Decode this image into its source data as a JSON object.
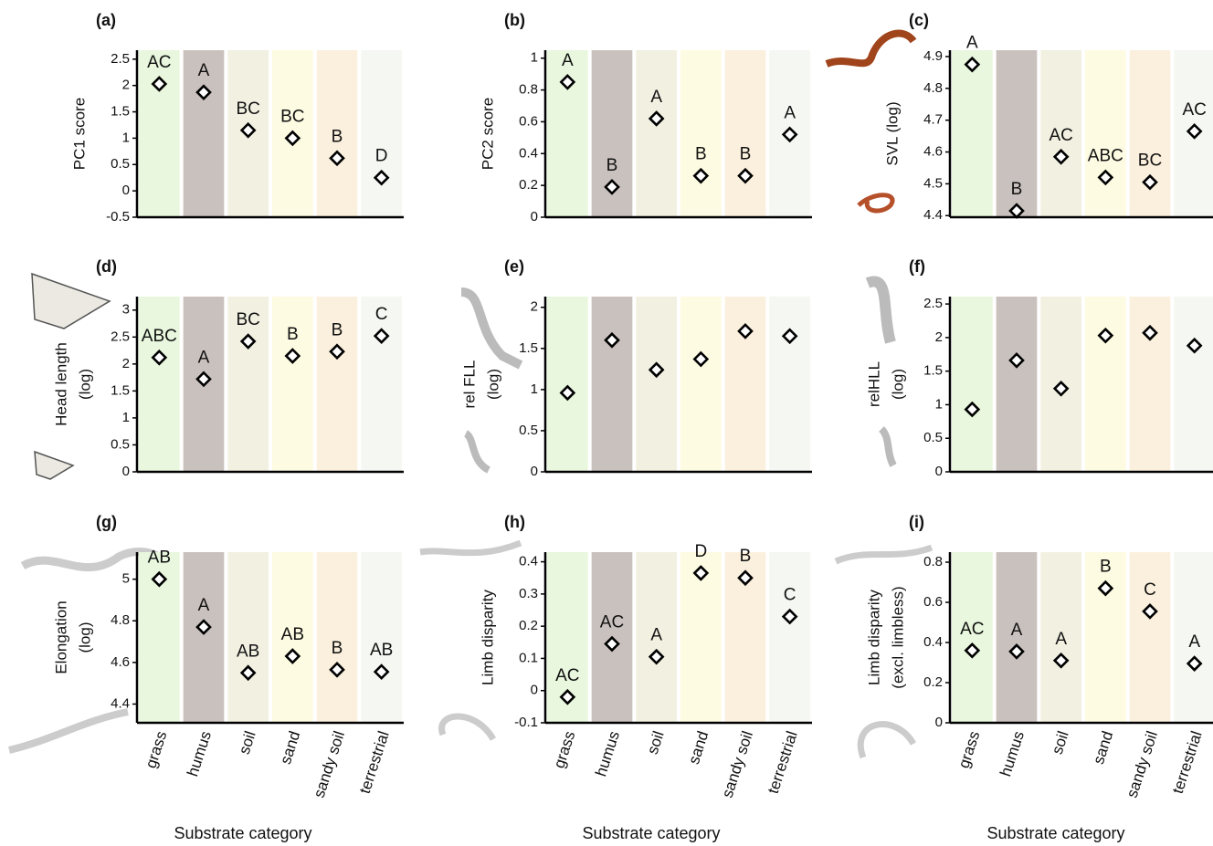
{
  "chart_data": [
    {
      "type": "point",
      "title": "(a)",
      "ylabel": "PC1 score",
      "categories": [
        null,
        null,
        null,
        null,
        null,
        null
      ],
      "values": [
        2.03,
        1.87,
        1.15,
        1.0,
        0.62,
        0.25
      ],
      "point_labels": [
        "AC",
        "A",
        "BC",
        "BC",
        "B",
        "D"
      ],
      "band_colors": [
        "#e8f7dd",
        "#c9c1bd",
        "#f2f0e1",
        "#fdfbe1",
        "#fbf0dd",
        "#f5f7f2"
      ],
      "color": "#000000",
      "ylim": [
        -0.5,
        2.67
      ],
      "yticks": [
        -0.5,
        0,
        0.5,
        1,
        1.5,
        2,
        2.5
      ]
    },
    {
      "type": "point",
      "title": "(b)",
      "ylabel": "PC2 score",
      "categories": [
        null,
        null,
        null,
        null,
        null,
        null
      ],
      "values": [
        0.85,
        0.19,
        0.62,
        0.26,
        0.26,
        0.52
      ],
      "point_labels": [
        "A",
        "B",
        "A",
        "B",
        "B",
        "A"
      ],
      "band_colors": [
        "#e8f7dd",
        "#c9c1bd",
        "#f2f0e1",
        "#fdfbe1",
        "#fbf0dd",
        "#f5f7f2"
      ],
      "color": "#000000",
      "ylim": [
        0,
        1.05
      ],
      "yticks": [
        0,
        0.2,
        0.4,
        0.6,
        0.8,
        1
      ]
    },
    {
      "type": "point",
      "title": "(c)",
      "ylabel": "SVL (log)",
      "categories": [
        null,
        null,
        null,
        null,
        null,
        null
      ],
      "values": [
        4.875,
        4.415,
        4.585,
        4.52,
        4.505,
        4.665
      ],
      "point_labels": [
        "A",
        "B",
        "AC",
        "ABC",
        "BC",
        "AC"
      ],
      "band_colors": [
        "#e8f7dd",
        "#c9c1bd",
        "#f2f0e1",
        "#fdfbe1",
        "#fbf0dd",
        "#f5f7f2"
      ],
      "color": "#000000",
      "ylim": [
        4.395,
        4.92
      ],
      "yticks": [
        4.4,
        4.5,
        4.6,
        4.7,
        4.8,
        4.9
      ]
    },
    {
      "type": "point",
      "title": "(d)",
      "ylabel": [
        "Head length",
        "(log)"
      ],
      "categories": [
        null,
        null,
        null,
        null,
        null,
        null
      ],
      "values": [
        2.12,
        1.72,
        2.42,
        2.15,
        2.23,
        2.52
      ],
      "point_labels": [
        "ABC",
        "A",
        "BC",
        "B",
        "B",
        "C"
      ],
      "band_colors": [
        "#e8f7dd",
        "#c9c1bd",
        "#f2f0e1",
        "#fdfbe1",
        "#fbf0dd",
        "#f5f7f2"
      ],
      "color": "#000000",
      "ylim": [
        0,
        3.25
      ],
      "yticks": [
        0,
        0.5,
        1,
        1.5,
        2,
        2.5,
        3
      ]
    },
    {
      "type": "point",
      "title": "(e)",
      "ylabel": [
        "rel FLL",
        "(log)"
      ],
      "categories": [
        null,
        null,
        null,
        null,
        null,
        null
      ],
      "values": [
        0.96,
        1.6,
        1.24,
        1.37,
        1.71,
        1.65
      ],
      "band_colors": [
        "#e8f7dd",
        "#c9c1bd",
        "#f2f0e1",
        "#fdfbe1",
        "#fbf0dd",
        "#f5f7f2"
      ],
      "color": "#000000",
      "ylim": [
        0,
        2.13
      ],
      "yticks": [
        0,
        0.5,
        1,
        1.5,
        2
      ]
    },
    {
      "type": "point",
      "title": "(f)",
      "ylabel": [
        "relHLL",
        "(log)"
      ],
      "categories": [
        null,
        null,
        null,
        null,
        null,
        null
      ],
      "values": [
        0.93,
        1.66,
        1.24,
        2.03,
        2.07,
        1.88
      ],
      "band_colors": [
        "#e8f7dd",
        "#c9c1bd",
        "#f2f0e1",
        "#fdfbe1",
        "#fbf0dd",
        "#f5f7f2"
      ],
      "color": "#000000",
      "ylim": [
        0,
        2.61
      ],
      "yticks": [
        0,
        0.5,
        1,
        1.5,
        2,
        2.5
      ]
    },
    {
      "type": "point",
      "title": "(g)",
      "ylabel": [
        "Elongation",
        "(log)"
      ],
      "xlabel": "Substrate category",
      "categories": [
        "grass",
        "humus",
        "soil",
        "sand",
        "sandy soil",
        "terrestrial"
      ],
      "values": [
        5.0,
        4.77,
        4.55,
        4.63,
        4.565,
        4.555
      ],
      "point_labels": [
        "AB",
        "A",
        "AB",
        "AB",
        "B",
        "AB"
      ],
      "band_colors": [
        "#e8f7dd",
        "#c9c1bd",
        "#f2f0e1",
        "#fdfbe1",
        "#fbf0dd",
        "#f5f7f2"
      ],
      "color": "#000000",
      "ylim": [
        4.31,
        5.13
      ],
      "yticks": [
        4.4,
        4.6,
        4.8,
        5
      ]
    },
    {
      "type": "point",
      "title": "(h)",
      "ylabel": "Limb disparity",
      "xlabel": "Substrate category",
      "categories": [
        "grass",
        "humus",
        "soil",
        "sand",
        "sandy soil",
        "terrestrial"
      ],
      "values": [
        -0.02,
        0.145,
        0.105,
        0.365,
        0.35,
        0.23
      ],
      "point_labels": [
        "AC",
        "AC",
        "A",
        "D",
        "B",
        "C"
      ],
      "band_colors": [
        "#e8f7dd",
        "#c9c1bd",
        "#f2f0e1",
        "#fdfbe1",
        "#fbf0dd",
        "#f5f7f2"
      ],
      "color": "#000000",
      "ylim": [
        -0.1,
        0.43
      ],
      "yticks": [
        -0.1,
        0,
        0.1,
        0.2,
        0.3,
        0.4
      ]
    },
    {
      "type": "point",
      "title": "(i)",
      "ylabel": [
        "Limb disparity",
        "(excl. limbless)"
      ],
      "xlabel": "Substrate category",
      "categories": [
        "grass",
        "humus",
        "soil",
        "sand",
        "sandy soil",
        "terrestrial"
      ],
      "values": [
        0.36,
        0.355,
        0.31,
        0.67,
        0.555,
        0.295
      ],
      "point_labels": [
        "AC",
        "A",
        "A",
        "B",
        "C",
        "A"
      ],
      "band_colors": [
        "#e8f7dd",
        "#c9c1bd",
        "#f2f0e1",
        "#fdfbe1",
        "#fbf0dd",
        "#f5f7f2"
      ],
      "color": "#000000",
      "ylim": [
        0,
        0.85
      ],
      "yticks": [
        0,
        0.2,
        0.4,
        0.6,
        0.8
      ]
    }
  ]
}
